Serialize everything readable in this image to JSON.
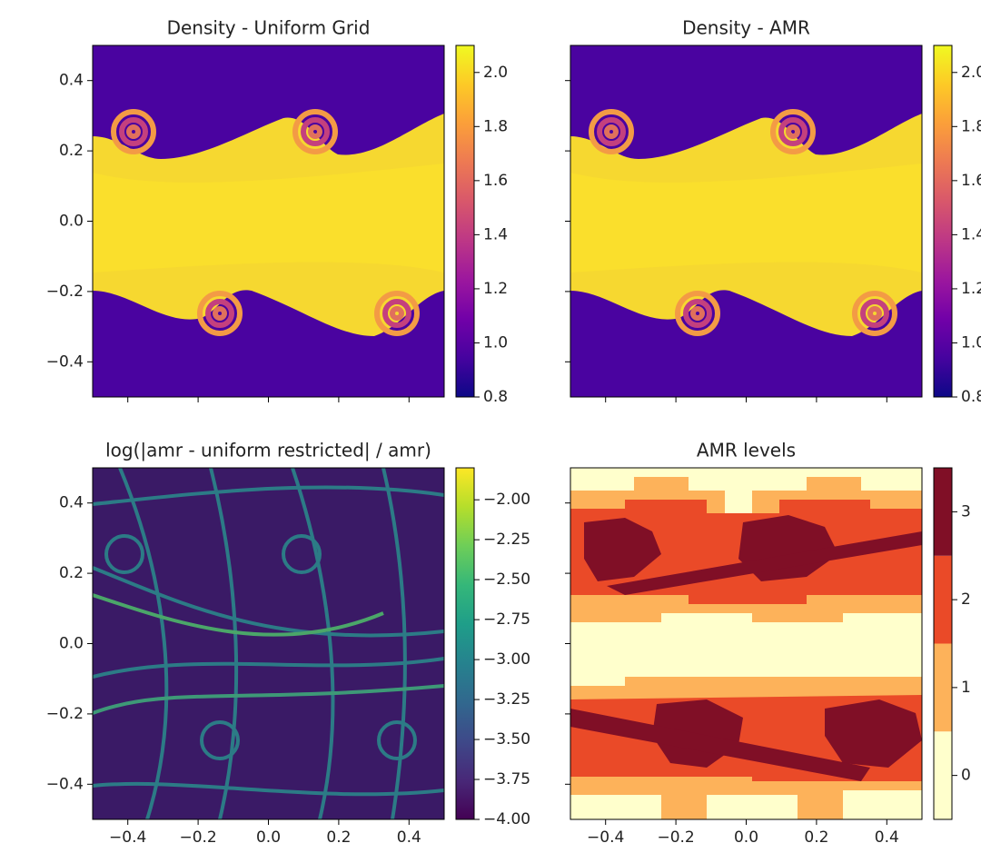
{
  "chart_data": [
    {
      "type": "heatmap",
      "title": "Density - Uniform Grid",
      "xlim": [
        -0.5,
        0.5
      ],
      "ylim": [
        -0.5,
        0.5
      ],
      "xticks": [
        -0.4,
        -0.2,
        0,
        0.2,
        0.4
      ],
      "show_xtick_labels": false,
      "yticks": [
        {
          "value": -0.4,
          "label": "−0.4"
        },
        {
          "value": -0.2,
          "label": "−0.2"
        },
        {
          "value": 0,
          "label": "0.0"
        },
        {
          "value": 0.2,
          "label": "0.2"
        },
        {
          "value": 0.4,
          "label": "0.4"
        }
      ],
      "show_ytick_labels": true,
      "colorbar": {
        "clim": [
          0.8,
          2.1
        ],
        "discrete": false,
        "colormap": [
          "#0d0887",
          "#46039f",
          "#7201a8",
          "#9c179e",
          "#bd3786",
          "#d8576b",
          "#ed7953",
          "#fb9f3a",
          "#fdca26",
          "#f0f921"
        ],
        "ticks": [
          {
            "value": 0.8,
            "label": "0.8"
          },
          {
            "value": 1.0,
            "label": "1.0"
          },
          {
            "value": 1.2,
            "label": "1.2"
          },
          {
            "value": 1.4,
            "label": "1.4"
          },
          {
            "value": 1.6,
            "label": "1.6"
          },
          {
            "value": 1.8,
            "label": "1.8"
          },
          {
            "value": 2.0,
            "label": "2.0"
          }
        ]
      }
    },
    {
      "type": "heatmap",
      "title": "Density - AMR",
      "xlim": [
        -0.5,
        0.5
      ],
      "ylim": [
        -0.5,
        0.5
      ],
      "xticks": [
        -0.4,
        -0.2,
        0,
        0.2,
        0.4
      ],
      "show_xtick_labels": false,
      "yticks": [
        -0.4,
        -0.2,
        0,
        0.2,
        0.4
      ],
      "show_ytick_labels": false,
      "colorbar": {
        "clim": [
          0.8,
          2.1
        ],
        "discrete": false,
        "colormap": [
          "#0d0887",
          "#46039f",
          "#7201a8",
          "#9c179e",
          "#bd3786",
          "#d8576b",
          "#ed7953",
          "#fb9f3a",
          "#fdca26",
          "#f0f921"
        ],
        "ticks": [
          {
            "value": 0.8,
            "label": "0.8"
          },
          {
            "value": 1.0,
            "label": "1.0"
          },
          {
            "value": 1.2,
            "label": "1.2"
          },
          {
            "value": 1.4,
            "label": "1.4"
          },
          {
            "value": 1.6,
            "label": "1.6"
          },
          {
            "value": 1.8,
            "label": "1.8"
          },
          {
            "value": 2.0,
            "label": "2.0"
          }
        ]
      }
    },
    {
      "type": "heatmap",
      "title": "log(|amr - uniform restricted| / amr)",
      "xlim": [
        -0.5,
        0.5
      ],
      "ylim": [
        -0.5,
        0.5
      ],
      "xticks": [
        {
          "value": -0.4,
          "label": "−0.4"
        },
        {
          "value": -0.2,
          "label": "−0.2"
        },
        {
          "value": 0,
          "label": "0.0"
        },
        {
          "value": 0.2,
          "label": "0.2"
        },
        {
          "value": 0.4,
          "label": "0.4"
        }
      ],
      "show_xtick_labels": true,
      "yticks": [
        {
          "value": -0.4,
          "label": "−0.4"
        },
        {
          "value": -0.2,
          "label": "−0.2"
        },
        {
          "value": 0,
          "label": "0.0"
        },
        {
          "value": 0.2,
          "label": "0.2"
        },
        {
          "value": 0.4,
          "label": "0.4"
        }
      ],
      "show_ytick_labels": true,
      "colorbar": {
        "clim": [
          -4.0,
          -1.8
        ],
        "discrete": false,
        "colormap": [
          "#440154",
          "#482878",
          "#3e4989",
          "#31688e",
          "#26828e",
          "#1f9e89",
          "#35b779",
          "#6ece58",
          "#b5de2b",
          "#fde725"
        ],
        "ticks": [
          {
            "value": -4.0,
            "label": "−4.00"
          },
          {
            "value": -3.75,
            "label": "−3.75"
          },
          {
            "value": -3.5,
            "label": "−3.50"
          },
          {
            "value": -3.25,
            "label": "−3.25"
          },
          {
            "value": -3.0,
            "label": "−3.00"
          },
          {
            "value": -2.75,
            "label": "−2.75"
          },
          {
            "value": -2.5,
            "label": "−2.50"
          },
          {
            "value": -2.25,
            "label": "−2.25"
          },
          {
            "value": -2.0,
            "label": "−2.00"
          }
        ]
      }
    },
    {
      "type": "heatmap",
      "title": "AMR levels",
      "xlim": [
        -0.5,
        0.5
      ],
      "ylim": [
        -0.5,
        0.5
      ],
      "xticks": [
        {
          "value": -0.4,
          "label": "−0.4"
        },
        {
          "value": -0.2,
          "label": "−0.2"
        },
        {
          "value": 0,
          "label": "0.0"
        },
        {
          "value": 0.2,
          "label": "0.2"
        },
        {
          "value": 0.4,
          "label": "0.4"
        }
      ],
      "show_xtick_labels": true,
      "yticks": [
        -0.4,
        -0.2,
        0,
        0.2,
        0.4
      ],
      "show_ytick_labels": false,
      "colorbar": {
        "clim": [
          -0.5,
          3.5
        ],
        "discrete": true,
        "colormap": [
          "#ffffcc",
          "#fdb25a",
          "#ea4a28",
          "#800f26"
        ],
        "ticks": [
          0,
          1,
          2,
          3
        ]
      }
    }
  ]
}
